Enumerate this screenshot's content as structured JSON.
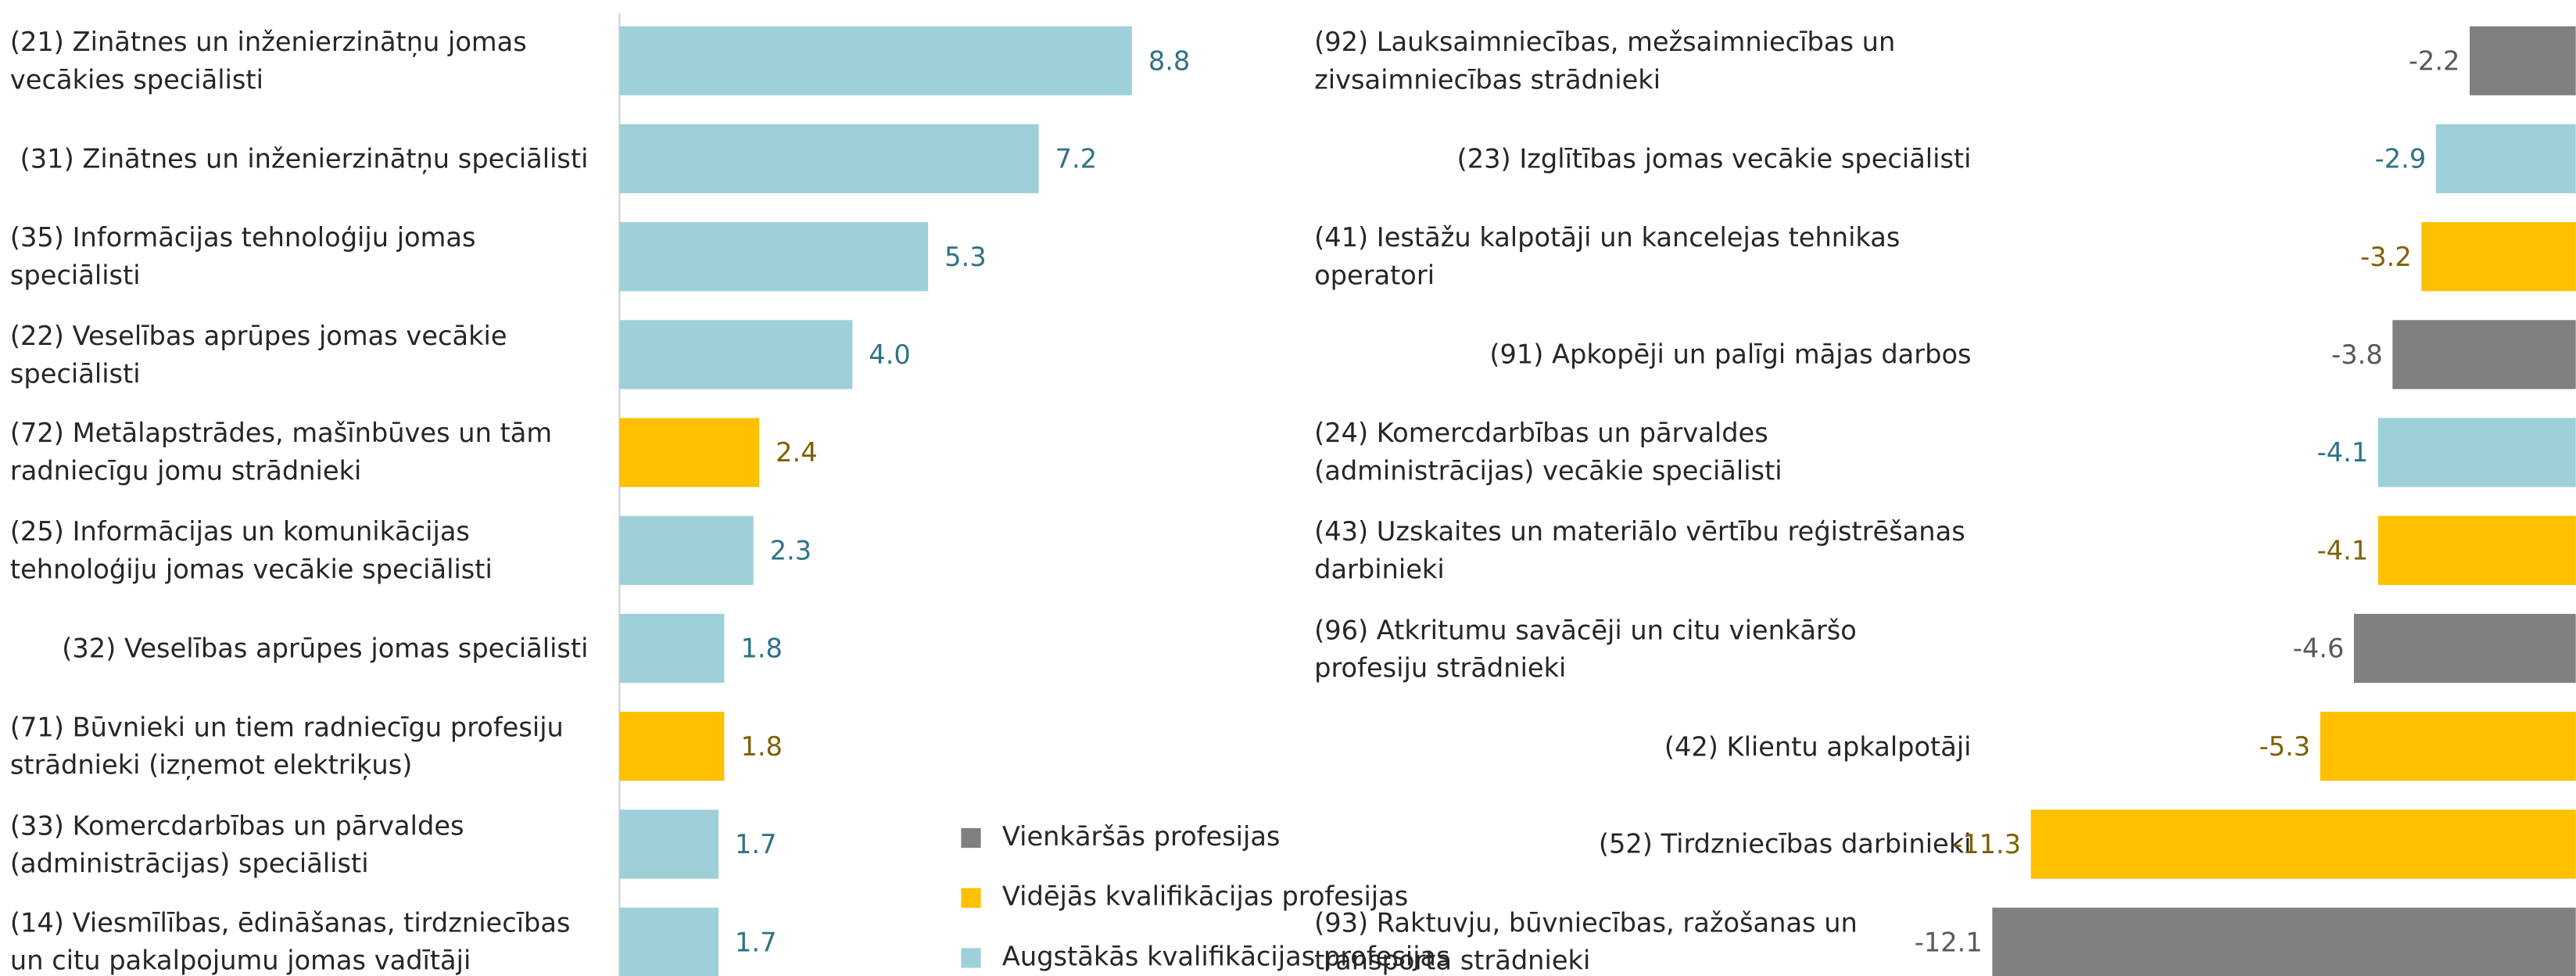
{
  "chart_data": [
    {
      "type": "bar",
      "orientation": "horizontal",
      "axis_line": true,
      "categories": [
        "(21) Zinātnes un inženierzinātņu jomas vecākies speciālisti",
        "(31) Zinātnes un inženierzinātņu speciālisti",
        "(35) Informācijas tehnoloģiju jomas speciālisti",
        "(22) Veselības aprūpes jomas vecākie speciālisti",
        "(72) Metālapstrādes, mašīnbūves un tām radniecīgu jomu strādnieki",
        "(25) Informācijas un komunikācijas tehnoloģiju jomas vecākie speciālisti",
        "(32) Veselības aprūpes jomas speciālisti",
        "(71) Būvnieki un tiem radniecīgu profesiju strādnieki (izņemot elektriķus)",
        "(33) Komercdarbības un pārvaldes (administrācijas) speciālisti",
        "(14) Viesmīlības, ēdināšanas, tirdzniecības un citu pakalpojumu jomas vadītāji"
      ],
      "values": [
        8.8,
        7.2,
        5.3,
        4.0,
        2.4,
        2.3,
        1.8,
        1.8,
        1.7,
        1.7
      ],
      "value_labels": [
        "8.8",
        "7.2",
        "5.3",
        "4.0",
        "2.4",
        "2.3",
        "1.8",
        "1.8",
        "1.7",
        "1.7"
      ],
      "colors": [
        "#9dd0d9",
        "#9dd0d9",
        "#9dd0d9",
        "#9dd0d9",
        "#ffc000",
        "#9dd0d9",
        "#9dd0d9",
        "#ffc000",
        "#9dd0d9",
        "#9dd0d9"
      ],
      "value_label_colors": [
        "#2e7385",
        "#2e7385",
        "#2e7385",
        "#2e7385",
        "#7f6000",
        "#2e7385",
        "#2e7385",
        "#7f6000",
        "#2e7385",
        "#2e7385"
      ],
      "xlim": [
        0,
        10
      ],
      "legend": [
        {
          "name": "Vienkāršās profesijas",
          "color": "#808080"
        },
        {
          "name": "Vidējās kvalifikācijas profesijas",
          "color": "#ffc000"
        },
        {
          "name": "Augstākās kvalifikācijas profesijas",
          "color": "#9dd0d9"
        }
      ]
    },
    {
      "type": "bar",
      "orientation": "horizontal",
      "axis_line": false,
      "categories": [
        "(92) Lauksaimniecības, mežsaimniecības un zivsaimniecības strādnieki",
        "(23) Izglītības jomas vecākie speciālisti",
        "(41) Iestāžu kalpotāji un kancelejas tehnikas operatori",
        "(91) Apkopēji un palīgi mājas darbos",
        "(24) Komercdarbības un pārvaldes (administrācijas) vecākie speciālisti",
        "(43) Uzskaites un materiālo vērtību reģistrēšanas darbinieki",
        "(96) Atkritumu savācēji un citu vienkāršo profesiju strādnieki",
        "(42) Klientu apkalpotāji",
        "(52) Tirdzniecības darbinieki",
        "(93) Raktuvju, būvniecības, ražošanas un transporta strādnieki"
      ],
      "values": [
        -2.2,
        -2.9,
        -3.2,
        -3.8,
        -4.1,
        -4.1,
        -4.6,
        -5.3,
        -11.3,
        -12.1
      ],
      "colors": [
        "#808080",
        "#9dd0d9",
        "#ffc000",
        "#808080",
        "#9dd0d9",
        "#ffc000",
        "#808080",
        "#ffc000",
        "#ffc000",
        "#808080"
      ],
      "value_label_colors": [
        "#595959",
        "#2e7385",
        "#7f6000",
        "#595959",
        "#2e7385",
        "#7f6000",
        "#595959",
        "#7f6000",
        "#7f6000",
        "#595959"
      ],
      "xlim": [
        -14,
        0
      ]
    }
  ]
}
